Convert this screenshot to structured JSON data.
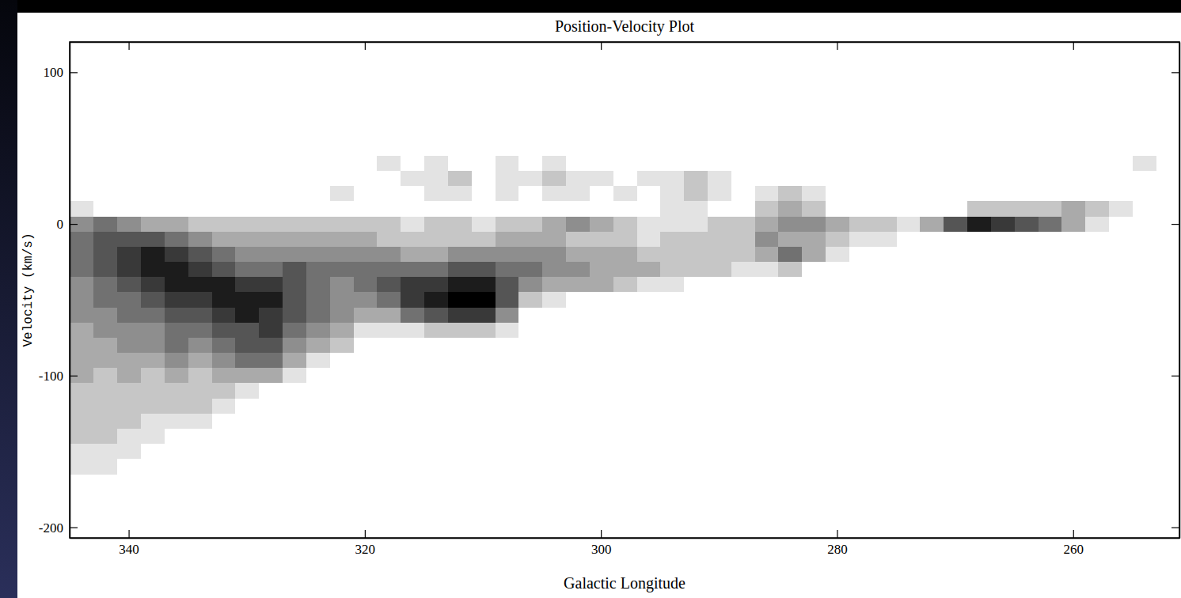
{
  "chart_data": {
    "type": "heatmap",
    "title": "Position-Velocity Plot",
    "x_label": "Galactic Longitude",
    "y_label": "Velocity (km/s)",
    "xlim": [
      345,
      251
    ],
    "ylim": [
      -207,
      120
    ],
    "xticks": [
      340,
      320,
      300,
      280,
      260
    ],
    "yticks": [
      -200,
      -100,
      0,
      100
    ],
    "grid": false,
    "color": "#000000",
    "x": [
      252,
      254,
      256,
      258,
      260,
      262,
      264,
      266,
      268,
      270,
      272,
      274,
      276,
      278,
      280,
      282,
      284,
      286,
      288,
      290,
      292,
      294,
      296,
      298,
      300,
      302,
      304,
      306,
      308,
      310,
      312,
      314,
      316,
      318,
      320,
      322,
      324,
      326,
      328,
      330,
      332,
      334,
      336,
      338,
      340,
      342,
      344
    ],
    "y": [
      40,
      30,
      20,
      10,
      0,
      -10,
      -20,
      -30,
      -40,
      -50,
      -60,
      -70,
      -80,
      -90,
      -100,
      -110,
      -120,
      -130,
      -140,
      -150,
      -160
    ],
    "z": [
      [
        0,
        1,
        0,
        0,
        0,
        0,
        0,
        0,
        0,
        0,
        0,
        0,
        0,
        0,
        0,
        0,
        0,
        0,
        0,
        0,
        0,
        0,
        0,
        0,
        0,
        0,
        1,
        0,
        1,
        0,
        0,
        1,
        0,
        1,
        0,
        0,
        0,
        0,
        0,
        0,
        0,
        0,
        0,
        0,
        0,
        0,
        0
      ],
      [
        0,
        0,
        0,
        0,
        0,
        0,
        0,
        0,
        0,
        0,
        0,
        0,
        0,
        0,
        0,
        0,
        0,
        0,
        0,
        1,
        2,
        1,
        1,
        0,
        1,
        1,
        2,
        1,
        1,
        0,
        2,
        1,
        1,
        0,
        0,
        0,
        0,
        0,
        0,
        0,
        0,
        0,
        0,
        0,
        0,
        0,
        0
      ],
      [
        0,
        0,
        0,
        0,
        0,
        0,
        0,
        0,
        0,
        0,
        0,
        0,
        0,
        0,
        0,
        1,
        2,
        1,
        0,
        1,
        2,
        1,
        0,
        1,
        0,
        1,
        1,
        0,
        1,
        0,
        1,
        1,
        0,
        0,
        0,
        1,
        0,
        0,
        0,
        0,
        0,
        0,
        0,
        0,
        0,
        0,
        0
      ],
      [
        0,
        0,
        1,
        2,
        3,
        2,
        2,
        2,
        2,
        0,
        0,
        0,
        0,
        0,
        0,
        2,
        3,
        2,
        0,
        0,
        1,
        1,
        0,
        0,
        0,
        0,
        0,
        0,
        0,
        0,
        0,
        0,
        0,
        0,
        0,
        0,
        0,
        0,
        0,
        0,
        0,
        0,
        0,
        0,
        0,
        0,
        1
      ],
      [
        0,
        0,
        0,
        1,
        3,
        5,
        6,
        7,
        8,
        6,
        3,
        1,
        2,
        2,
        3,
        4,
        4,
        3,
        2,
        2,
        1,
        1,
        1,
        2,
        3,
        4,
        3,
        2,
        2,
        1,
        2,
        2,
        1,
        2,
        2,
        2,
        2,
        2,
        2,
        2,
        2,
        2,
        3,
        3,
        4,
        5,
        4
      ],
      [
        0,
        0,
        0,
        0,
        0,
        0,
        0,
        0,
        0,
        0,
        0,
        0,
        1,
        1,
        2,
        3,
        3,
        4,
        2,
        2,
        2,
        2,
        1,
        2,
        2,
        2,
        3,
        3,
        3,
        2,
        2,
        2,
        2,
        2,
        3,
        3,
        3,
        3,
        3,
        3,
        3,
        4,
        5,
        6,
        6,
        6,
        5
      ],
      [
        0,
        0,
        0,
        0,
        0,
        0,
        0,
        0,
        0,
        0,
        0,
        0,
        0,
        0,
        1,
        3,
        5,
        3,
        2,
        2,
        2,
        2,
        2,
        3,
        3,
        3,
        4,
        4,
        4,
        4,
        4,
        3,
        3,
        4,
        4,
        4,
        4,
        4,
        4,
        4,
        5,
        6,
        7,
        8,
        7,
        6,
        5
      ],
      [
        0,
        0,
        0,
        0,
        0,
        0,
        0,
        0,
        0,
        0,
        0,
        0,
        0,
        0,
        0,
        0,
        2,
        1,
        1,
        2,
        2,
        2,
        3,
        3,
        3,
        4,
        4,
        5,
        5,
        6,
        6,
        5,
        5,
        5,
        5,
        5,
        5,
        6,
        5,
        5,
        6,
        7,
        8,
        8,
        7,
        6,
        5
      ],
      [
        0,
        0,
        0,
        0,
        0,
        0,
        0,
        0,
        0,
        0,
        0,
        0,
        0,
        0,
        0,
        0,
        0,
        0,
        0,
        0,
        0,
        1,
        1,
        2,
        3,
        3,
        3,
        4,
        6,
        8,
        8,
        7,
        7,
        6,
        5,
        4,
        5,
        6,
        7,
        7,
        8,
        8,
        8,
        7,
        6,
        5,
        4
      ],
      [
        0,
        0,
        0,
        0,
        0,
        0,
        0,
        0,
        0,
        0,
        0,
        0,
        0,
        0,
        0,
        0,
        0,
        0,
        0,
        0,
        0,
        0,
        0,
        0,
        0,
        0,
        1,
        2,
        6,
        9,
        9,
        8,
        7,
        5,
        4,
        4,
        5,
        6,
        8,
        8,
        8,
        7,
        7,
        6,
        5,
        5,
        4
      ],
      [
        0,
        0,
        0,
        0,
        0,
        0,
        0,
        0,
        0,
        0,
        0,
        0,
        0,
        0,
        0,
        0,
        0,
        0,
        0,
        0,
        0,
        0,
        0,
        0,
        0,
        0,
        0,
        0,
        4,
        7,
        7,
        6,
        5,
        3,
        3,
        4,
        5,
        6,
        7,
        8,
        7,
        6,
        6,
        5,
        5,
        4,
        4
      ],
      [
        0,
        0,
        0,
        0,
        0,
        0,
        0,
        0,
        0,
        0,
        0,
        0,
        0,
        0,
        0,
        0,
        0,
        0,
        0,
        0,
        0,
        0,
        0,
        0,
        0,
        0,
        0,
        0,
        1,
        2,
        2,
        2,
        1,
        1,
        1,
        3,
        4,
        5,
        7,
        6,
        6,
        5,
        5,
        4,
        4,
        4,
        3
      ],
      [
        0,
        0,
        0,
        0,
        0,
        0,
        0,
        0,
        0,
        0,
        0,
        0,
        0,
        0,
        0,
        0,
        0,
        0,
        0,
        0,
        0,
        0,
        0,
        0,
        0,
        0,
        0,
        0,
        0,
        0,
        0,
        0,
        0,
        0,
        0,
        2,
        3,
        4,
        6,
        6,
        5,
        4,
        5,
        4,
        4,
        3,
        3
      ],
      [
        0,
        0,
        0,
        0,
        0,
        0,
        0,
        0,
        0,
        0,
        0,
        0,
        0,
        0,
        0,
        0,
        0,
        0,
        0,
        0,
        0,
        0,
        0,
        0,
        0,
        0,
        0,
        0,
        0,
        0,
        0,
        0,
        0,
        0,
        0,
        0,
        1,
        3,
        5,
        5,
        4,
        3,
        4,
        3,
        3,
        3,
        3
      ],
      [
        0,
        0,
        0,
        0,
        0,
        0,
        0,
        0,
        0,
        0,
        0,
        0,
        0,
        0,
        0,
        0,
        0,
        0,
        0,
        0,
        0,
        0,
        0,
        0,
        0,
        0,
        0,
        0,
        0,
        0,
        0,
        0,
        0,
        0,
        0,
        0,
        0,
        1,
        3,
        3,
        3,
        2,
        3,
        2,
        3,
        2,
        3
      ],
      [
        0,
        0,
        0,
        0,
        0,
        0,
        0,
        0,
        0,
        0,
        0,
        0,
        0,
        0,
        0,
        0,
        0,
        0,
        0,
        0,
        0,
        0,
        0,
        0,
        0,
        0,
        0,
        0,
        0,
        0,
        0,
        0,
        0,
        0,
        0,
        0,
        0,
        0,
        0,
        1,
        2,
        2,
        2,
        2,
        2,
        2,
        2
      ],
      [
        0,
        0,
        0,
        0,
        0,
        0,
        0,
        0,
        0,
        0,
        0,
        0,
        0,
        0,
        0,
        0,
        0,
        0,
        0,
        0,
        0,
        0,
        0,
        0,
        0,
        0,
        0,
        0,
        0,
        0,
        0,
        0,
        0,
        0,
        0,
        0,
        0,
        0,
        0,
        0,
        1,
        2,
        2,
        2,
        2,
        2,
        2
      ],
      [
        0,
        0,
        0,
        0,
        0,
        0,
        0,
        0,
        0,
        0,
        0,
        0,
        0,
        0,
        0,
        0,
        0,
        0,
        0,
        0,
        0,
        0,
        0,
        0,
        0,
        0,
        0,
        0,
        0,
        0,
        0,
        0,
        0,
        0,
        0,
        0,
        0,
        0,
        0,
        0,
        0,
        1,
        1,
        1,
        2,
        2,
        2
      ],
      [
        0,
        0,
        0,
        0,
        0,
        0,
        0,
        0,
        0,
        0,
        0,
        0,
        0,
        0,
        0,
        0,
        0,
        0,
        0,
        0,
        0,
        0,
        0,
        0,
        0,
        0,
        0,
        0,
        0,
        0,
        0,
        0,
        0,
        0,
        0,
        0,
        0,
        0,
        0,
        0,
        0,
        0,
        0,
        1,
        1,
        2,
        2
      ],
      [
        0,
        0,
        0,
        0,
        0,
        0,
        0,
        0,
        0,
        0,
        0,
        0,
        0,
        0,
        0,
        0,
        0,
        0,
        0,
        0,
        0,
        0,
        0,
        0,
        0,
        0,
        0,
        0,
        0,
        0,
        0,
        0,
        0,
        0,
        0,
        0,
        0,
        0,
        0,
        0,
        0,
        0,
        0,
        0,
        1,
        1,
        1
      ],
      [
        0,
        0,
        0,
        0,
        0,
        0,
        0,
        0,
        0,
        0,
        0,
        0,
        0,
        0,
        0,
        0,
        0,
        0,
        0,
        0,
        0,
        0,
        0,
        0,
        0,
        0,
        0,
        0,
        0,
        0,
        0,
        0,
        0,
        0,
        0,
        0,
        0,
        0,
        0,
        0,
        0,
        0,
        0,
        0,
        0,
        1,
        1
      ]
    ]
  }
}
